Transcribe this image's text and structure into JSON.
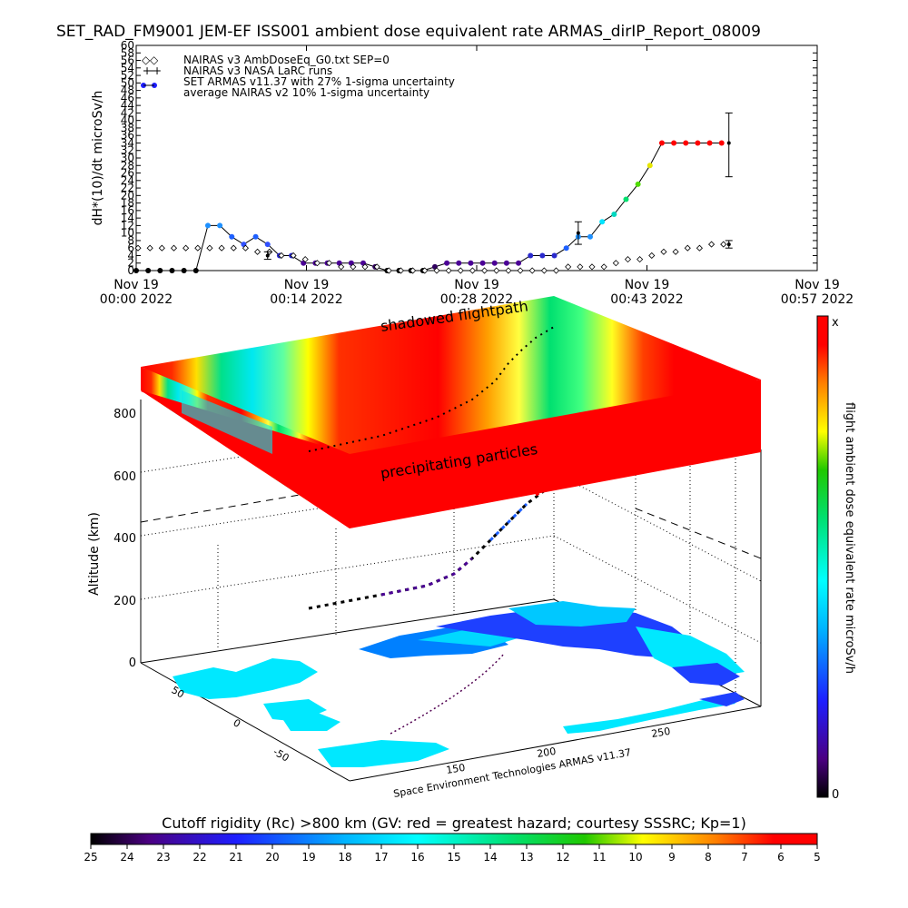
{
  "page": {
    "title": "SET_RAD_FM9001  JEM-EF ISS001 ambient dose equivalent rate ARMAS_dirIP_Report_08009",
    "footer": "Space Environment Technologies ARMAS v11.37",
    "annotation_top": "shadowed flightpath",
    "annotation_slab": "precipitating particles",
    "right_colorbar_label": "flight ambient dose equivalent rate microSv/h",
    "right_colorbar_max": "x",
    "right_colorbar_min": "0",
    "bottom_colorbar_title": "Cutoff rigidity (Rc) >800 km (GV: red = greatest hazard; courtesy SSSRC; Kp=1)",
    "bottom_colorbar_ticks": [
      "25",
      "24",
      "23",
      "22",
      "21",
      "20",
      "19",
      "18",
      "17",
      "16",
      "15",
      "14",
      "13",
      "12",
      "11",
      "10",
      "9",
      "8",
      "7",
      "6",
      "5"
    ],
    "altitude_label": "Altitude (km)",
    "altitude_ticks": [
      "0",
      "200",
      "400",
      "600",
      "800"
    ],
    "lat_ticks": [
      "50",
      "0",
      "-50"
    ],
    "lon_ticks": [
      "150",
      "200",
      "250"
    ]
  },
  "chart_data": [
    {
      "type": "line",
      "ylabel": "dH*(10)/dt microSv/h",
      "ylim": [
        0,
        60
      ],
      "yticks": [
        "0",
        "2",
        "4",
        "6",
        "8",
        "10",
        "12",
        "14",
        "16",
        "18",
        "20",
        "22",
        "24",
        "26",
        "28",
        "30",
        "32",
        "34",
        "36",
        "38",
        "40",
        "42",
        "44",
        "46",
        "48",
        "50",
        "52",
        "54",
        "56",
        "58",
        "60"
      ],
      "xlim_minutes": [
        0,
        57
      ],
      "xticks": [
        {
          "top": "Nov 19",
          "bottom": "00:00 2022"
        },
        {
          "top": "Nov 19",
          "bottom": "00:14 2022"
        },
        {
          "top": "Nov 19",
          "bottom": "00:28 2022"
        },
        {
          "top": "Nov 19",
          "bottom": "00:43 2022"
        },
        {
          "top": "Nov 19",
          "bottom": "00:57 2022"
        }
      ],
      "legend": [
        "NAIRAS v3 AmbDoseEq_G0.txt SEP=0",
        "NAIRAS v3 NASA LaRC runs",
        "SET ARMAS v11.37 with 27% 1-sigma uncertainty",
        "average NAIRAS v2 10% 1-sigma uncertainty"
      ],
      "series": [
        {
          "name": "SET ARMAS v11.37 with 27% 1-sigma uncertainty",
          "marker": "filled-circle",
          "x": [
            0,
            1,
            2,
            3,
            4,
            5,
            6,
            7,
            8,
            9,
            10,
            11,
            12,
            13,
            14,
            15,
            16,
            17,
            18,
            19,
            20,
            21,
            22,
            23,
            24,
            25,
            26,
            27,
            28,
            29,
            30,
            31,
            32,
            33,
            34,
            35,
            36,
            37,
            38,
            39,
            40,
            41,
            42,
            43,
            44,
            45,
            46,
            47,
            48,
            49
          ],
          "y": [
            0,
            0,
            0,
            0,
            0,
            0,
            12,
            12,
            9,
            7,
            9,
            7,
            4,
            4,
            2,
            2,
            2,
            2,
            2,
            2,
            1,
            0,
            0,
            0,
            0,
            1,
            2,
            2,
            2,
            2,
            2,
            2,
            2,
            4,
            4,
            4,
            6,
            9,
            9,
            13,
            15,
            19,
            23,
            28,
            34,
            34,
            34,
            34,
            34,
            34
          ],
          "colors": [
            "#000000",
            "#000000",
            "#000000",
            "#000000",
            "#000000",
            "#000000",
            "#1e90ff",
            "#1e90ff",
            "#1e60ff",
            "#3050ff",
            "#1e60ff",
            "#3050ff",
            "#2a2acd",
            "#2a2acd",
            "#4b0096",
            "#4b0096",
            "#4b0096",
            "#4b0096",
            "#4b0096",
            "#4b0096",
            "#300060",
            "#000000",
            "#000000",
            "#000000",
            "#000000",
            "#300060",
            "#4b0096",
            "#4b0096",
            "#4b0096",
            "#4b0096",
            "#4b0096",
            "#4b0096",
            "#4b0096",
            "#2a2acd",
            "#2a2acd",
            "#2a2acd",
            "#1e60ff",
            "#1e90ff",
            "#1e90ff",
            "#00e5ff",
            "#00d8c0",
            "#00e070",
            "#50dc00",
            "#e6e600",
            "#ff0000",
            "#ff0000",
            "#ff0000",
            "#ff0000",
            "#ff0000",
            "#ff0000"
          ]
        },
        {
          "name": "NAIRAS v3 AmbDoseEq_G0.txt SEP=0",
          "marker": "diamond",
          "x": [
            0,
            1,
            2,
            3,
            4,
            5,
            6,
            7,
            8,
            9,
            10,
            11,
            12,
            13,
            14,
            15,
            16,
            17,
            18,
            19,
            20,
            21,
            22,
            23,
            24,
            25,
            26,
            27,
            28,
            29,
            30,
            31,
            32,
            33,
            34,
            35,
            36,
            37,
            38,
            39,
            40,
            41,
            42,
            43,
            44,
            45,
            46,
            47,
            48,
            49
          ],
          "y": [
            6,
            6,
            6,
            6,
            6,
            6,
            6,
            6,
            6,
            6,
            5,
            5,
            4,
            4,
            3,
            2,
            2,
            1,
            1,
            1,
            1,
            0,
            0,
            0,
            0,
            0,
            0,
            0,
            0,
            0,
            0,
            0,
            0,
            0,
            0,
            0,
            1,
            1,
            1,
            1,
            2,
            3,
            3,
            4,
            5,
            5,
            6,
            6,
            7,
            7
          ]
        }
      ],
      "error_bars": [
        {
          "x": 11,
          "y": 4,
          "low": 3,
          "high": 5
        },
        {
          "x": 37,
          "y": 10,
          "low": 7,
          "high": 13
        },
        {
          "x": 49,
          "y": 34,
          "low": 25,
          "high": 42
        },
        {
          "x": 49,
          "y": 7,
          "low": 6,
          "high": 8
        }
      ]
    },
    {
      "type": "heatmap",
      "zlabel": "Altitude (km)",
      "zlim": [
        0,
        800
      ]
    }
  ]
}
